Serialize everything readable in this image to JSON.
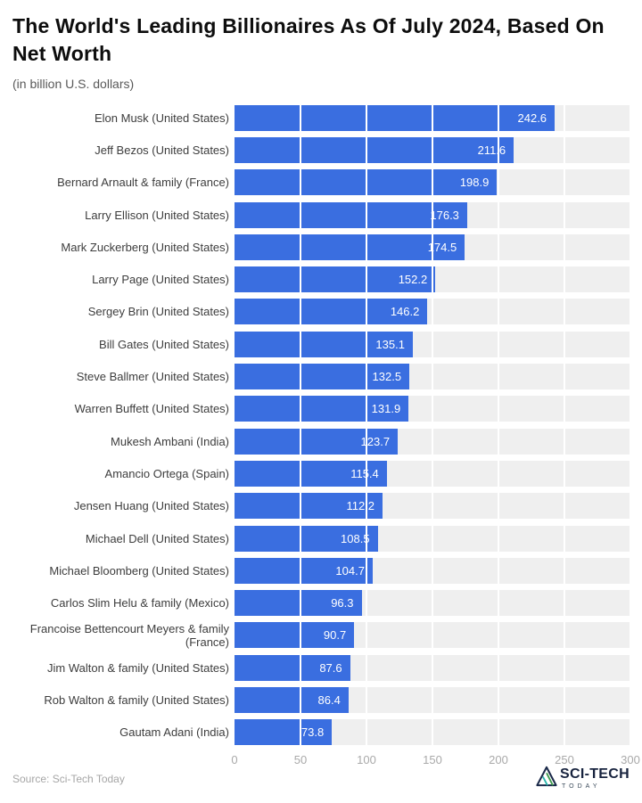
{
  "header": {
    "title_line1": "The World's Leading Billionaires As Of July 2024, Based On",
    "title_line2": "Net Worth",
    "subtitle": "(in billion U.S. dollars)"
  },
  "chart_data": {
    "type": "bar",
    "orientation": "horizontal",
    "title": "The World's Leading Billionaires As Of July 2024, Based On Net Worth",
    "subtitle": "(in billion U.S. dollars)",
    "categories": [
      "Elon Musk (United States)",
      "Jeff Bezos (United States)",
      "Bernard Arnault & family (France)",
      "Larry Ellison (United States)",
      "Mark Zuckerberg (United States)",
      "Larry Page (United States)",
      "Sergey Brin (United States)",
      "Bill Gates (United States)",
      "Steve Ballmer (United States)",
      "Warren Buffett (United States)",
      "Mukesh Ambani (India)",
      "Amancio Ortega (Spain)",
      "Jensen Huang (United States)",
      "Michael Dell (United States)",
      "Michael Bloomberg (United States)",
      "Carlos Slim Helu & family (Mexico)",
      "Francoise Bettencourt Meyers & family (France)",
      "Jim Walton & family (United States)",
      "Rob Walton & family (United States)",
      "Gautam Adani (India)"
    ],
    "values": [
      242.6,
      211.6,
      198.9,
      176.3,
      174.5,
      152.2,
      146.2,
      135.1,
      132.5,
      131.9,
      123.7,
      115.4,
      112.2,
      108.5,
      104.7,
      96.3,
      90.7,
      87.6,
      86.4,
      73.8
    ],
    "value_unit": "billion U.S. dollars",
    "xlabel": "",
    "ylabel": "",
    "xlim": [
      0,
      300
    ],
    "x_ticks": [
      0,
      50,
      100,
      150,
      200,
      250,
      300
    ],
    "legend": "none",
    "grid": "vertical white gridlines on gray plot background",
    "bar_color": "#3a6ee0",
    "plot_background": "#efefef",
    "value_label_color": "#ffffff"
  },
  "footer": {
    "source": "Source: Sci-Tech Today",
    "logo": {
      "line1": "SCI-TECH",
      "line2": "TODAY"
    }
  }
}
